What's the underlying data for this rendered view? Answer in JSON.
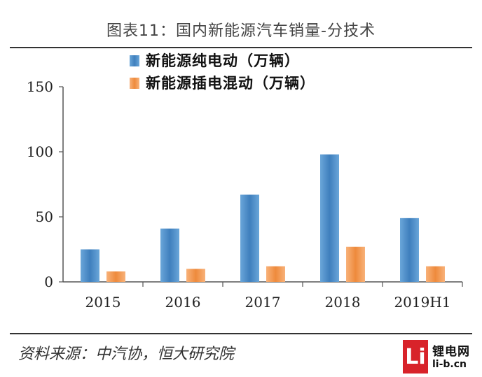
{
  "title": "图表11：国内新能源汽车销量-分技术",
  "source": "资料来源：中汽协，恒大研究院",
  "watermark": {
    "logo": "Li",
    "name": "锂电网",
    "domain": "li-b.cn"
  },
  "colors": {
    "bev": "#4f8dc4",
    "phev": "#f2954a",
    "axis": "#555555"
  },
  "chart_data": {
    "type": "bar",
    "categories": [
      "2015",
      "2016",
      "2017",
      "2018",
      "2019H1"
    ],
    "series": [
      {
        "name": "新能源纯电动（万辆）",
        "values": [
          25,
          41,
          67,
          98,
          49
        ]
      },
      {
        "name": "新能源插电混动（万辆）",
        "values": [
          8,
          10,
          12,
          27,
          12
        ]
      }
    ],
    "ylim": [
      0,
      150
    ],
    "yticks": [
      "0",
      "50",
      "100",
      "150"
    ],
    "legend": "top-left",
    "grid": false
  }
}
